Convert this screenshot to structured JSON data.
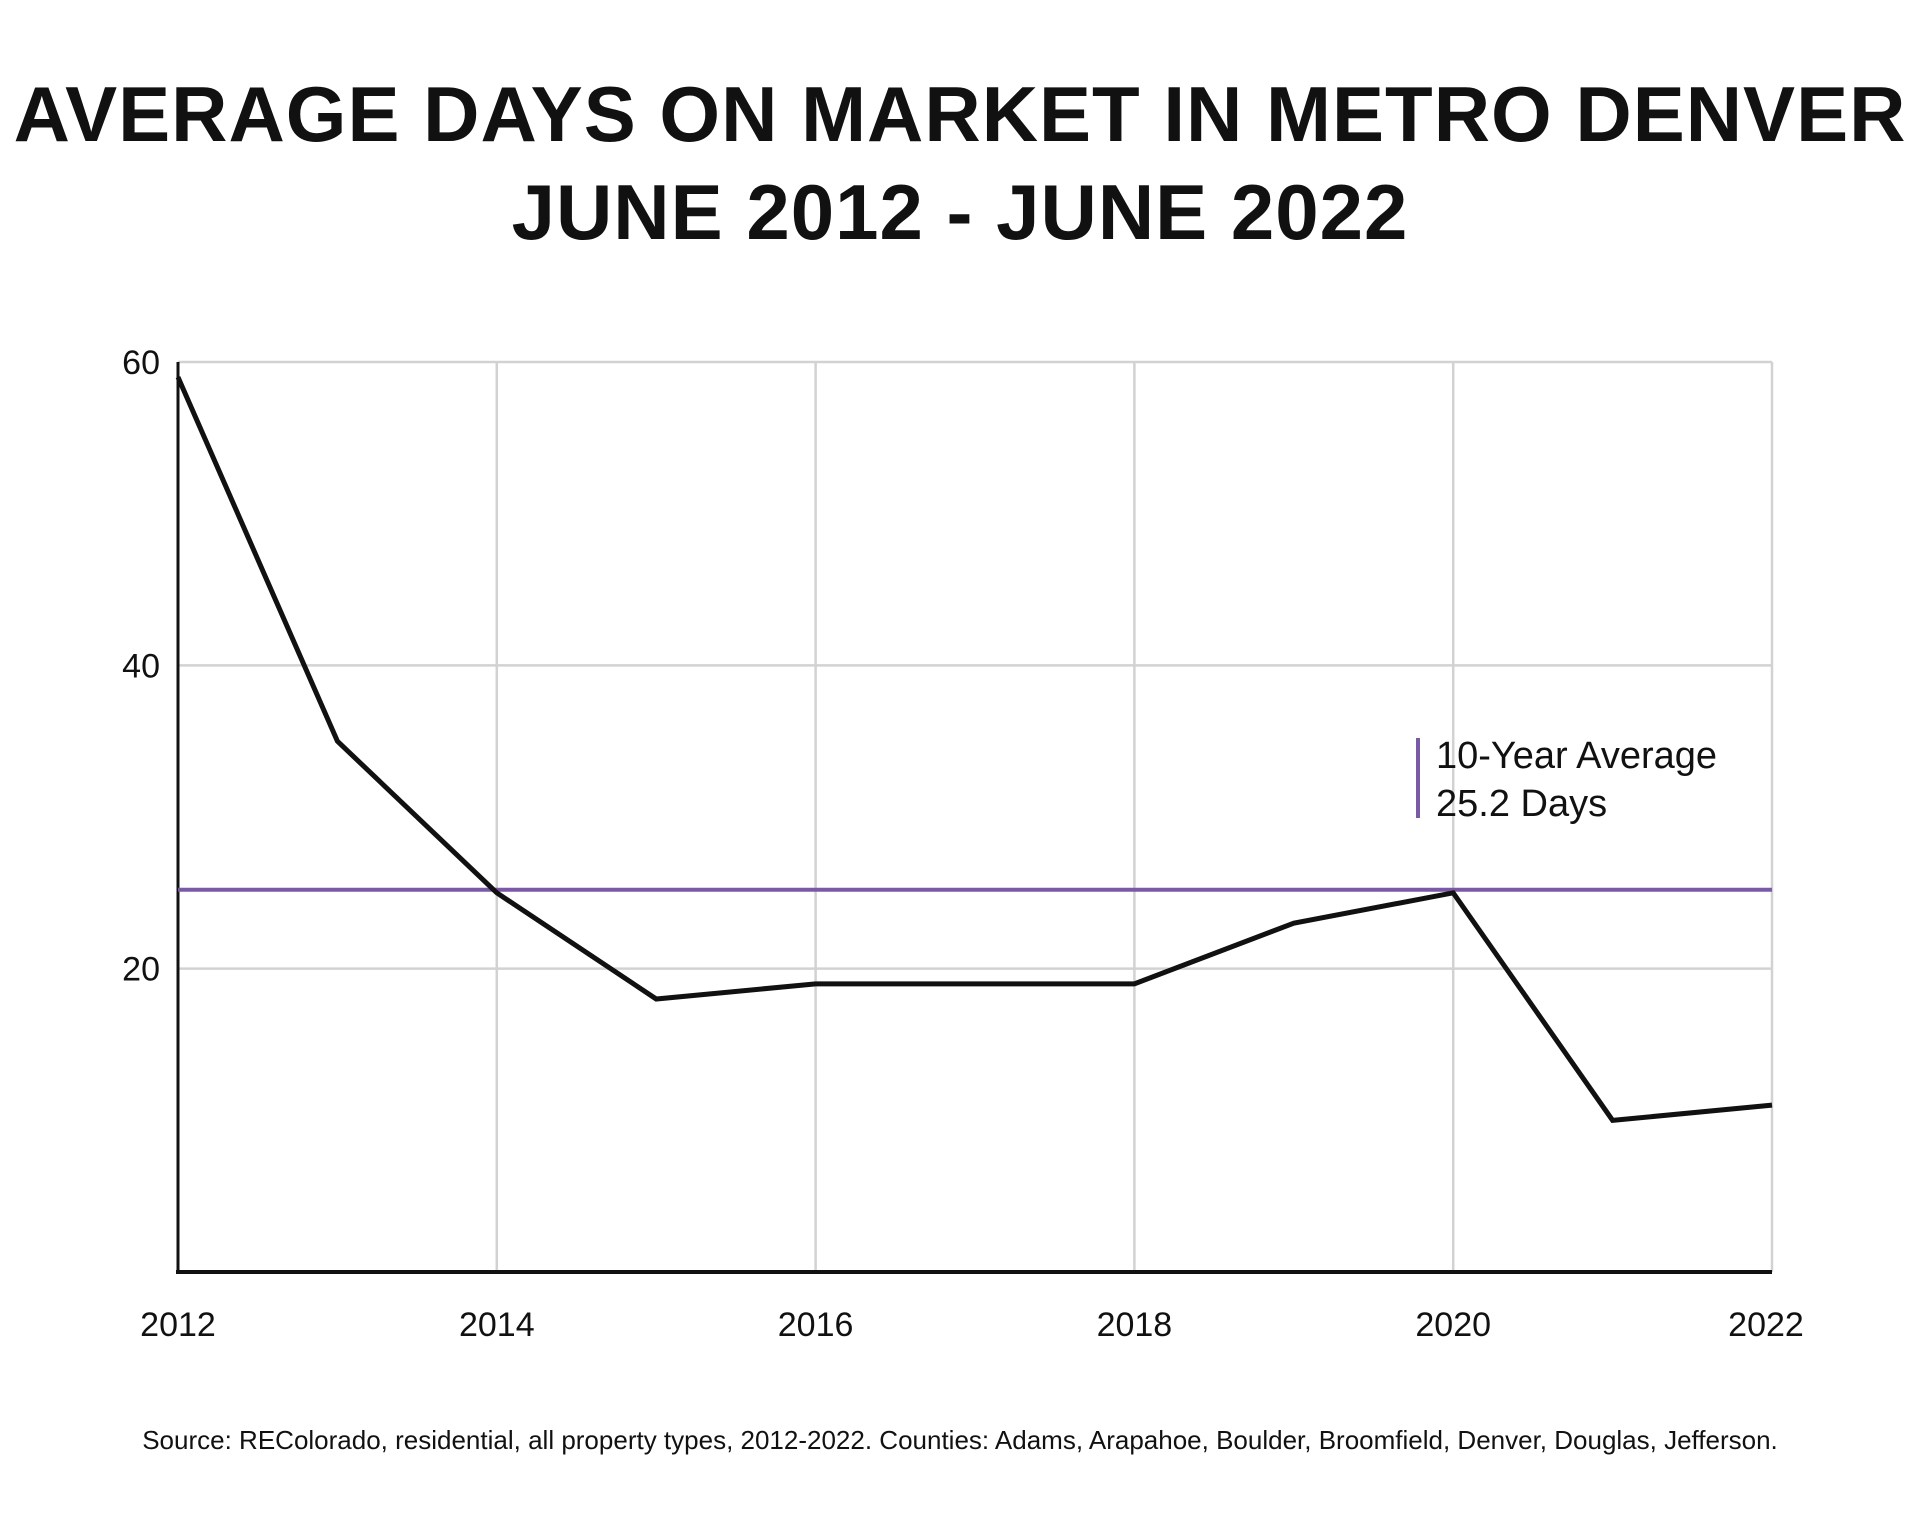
{
  "colors": {
    "line": "#111111",
    "average": "#7a5aa6",
    "grid": "#d2d2d2",
    "axis": "#111111"
  },
  "chart_data": {
    "type": "line",
    "title": "AVERAGE DAYS ON MARKET IN METRO DENVER",
    "subtitle": "JUNE 2012 - JUNE 2022",
    "xlabel": "",
    "ylabel": "",
    "xlim": [
      2012,
      2022
    ],
    "ylim": [
      0,
      60
    ],
    "x_ticks": [
      2012,
      2014,
      2016,
      2018,
      2020,
      2022
    ],
    "y_ticks": [
      20,
      40,
      60
    ],
    "grid": true,
    "series": [
      {
        "name": "Average Days on Market",
        "x": [
          2012,
          2013,
          2014,
          2015,
          2016,
          2017,
          2018,
          2019,
          2020,
          2021,
          2022
        ],
        "y": [
          59,
          35,
          25,
          18,
          19,
          19,
          19,
          23,
          25,
          10,
          11
        ]
      }
    ],
    "reference_line": {
      "value": 25.2,
      "label_line1": "10-Year Average",
      "label_line2": "25.2 Days"
    },
    "source": "Source: REColorado, residential, all property types, 2012-2022. Counties: Adams, Arapahoe, Boulder, Broomfield, Denver, Douglas, Jefferson."
  }
}
